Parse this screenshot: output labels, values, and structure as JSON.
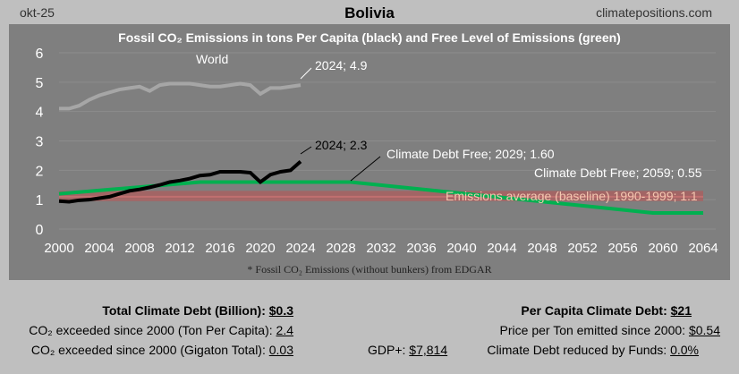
{
  "header": {
    "date": "okt-25",
    "country": "Bolivia",
    "site": "climatepositions.com"
  },
  "chart_data": {
    "type": "line",
    "title": "Fossil CO₂ Emissions in tons Per Capita (black) and Free Level of Emissions (green)",
    "footnote": "* Fossil CO₂ Emissions (without bunkers) from EDGAR",
    "xlim": [
      2000,
      2064
    ],
    "ylim": [
      0,
      6
    ],
    "x_ticks": [
      "2000",
      "2004",
      "2008",
      "2012",
      "2016",
      "2020",
      "2024",
      "2028",
      "2032",
      "2036",
      "2040",
      "2044",
      "2048",
      "2052",
      "2056",
      "2060",
      "2064"
    ],
    "y_ticks": [
      "0",
      "1",
      "2",
      "3",
      "4",
      "5",
      "6"
    ],
    "series": [
      {
        "name": "World",
        "color": "#999999",
        "x": [
          2000,
          2001,
          2002,
          2003,
          2004,
          2005,
          2006,
          2007,
          2008,
          2009,
          2010,
          2011,
          2012,
          2013,
          2014,
          2015,
          2016,
          2017,
          2018,
          2019,
          2020,
          2021,
          2022,
          2023,
          2024
        ],
        "y": [
          4.1,
          4.1,
          4.2,
          4.4,
          4.55,
          4.65,
          4.75,
          4.8,
          4.85,
          4.7,
          4.9,
          4.95,
          4.95,
          4.95,
          4.9,
          4.85,
          4.85,
          4.9,
          4.95,
          4.9,
          4.6,
          4.8,
          4.8,
          4.85,
          4.9
        ]
      },
      {
        "name": "Bolivia",
        "color": "#000000",
        "x": [
          2000,
          2001,
          2002,
          2003,
          2004,
          2005,
          2006,
          2007,
          2008,
          2009,
          2010,
          2011,
          2012,
          2013,
          2014,
          2015,
          2016,
          2017,
          2018,
          2019,
          2020,
          2021,
          2022,
          2023,
          2024
        ],
        "y": [
          0.95,
          0.93,
          0.98,
          1.0,
          1.05,
          1.1,
          1.2,
          1.3,
          1.35,
          1.42,
          1.5,
          1.6,
          1.65,
          1.72,
          1.82,
          1.85,
          1.95,
          1.95,
          1.95,
          1.92,
          1.6,
          1.85,
          1.95,
          2.0,
          2.3
        ]
      },
      {
        "name": "Climate Debt Free",
        "color": "#00b050",
        "x": [
          2000,
          2014,
          2029,
          2059,
          2064
        ],
        "y": [
          1.2,
          1.6,
          1.6,
          0.55,
          0.55
        ]
      }
    ],
    "baseline": {
      "value": 1.1,
      "band": [
        0.95,
        1.3
      ]
    },
    "annotations": {
      "world": "World",
      "world_2024": "2024; 4.9",
      "country_2024": "2024; 2.3",
      "free_2029": "Climate Debt Free; 2029; 1.60",
      "free_2059": "Climate Debt Free; 2059; 0.55",
      "baseline": "Emissions average (baseline) 1990-1999; 1.1"
    }
  },
  "stats": {
    "total_debt_label": "Total Climate Debt (Billion):",
    "total_debt": "$0.3",
    "per_capita_label": "Per Capita Climate Debt:",
    "per_capita": "$21",
    "exceeded_ton_label": "CO₂ exceeded since 2000 (Ton Per Capita):",
    "exceeded_ton": "2.4",
    "price_label": "Price per Ton emitted since 2000:",
    "price": "$0.54",
    "exceeded_gt_label": "CO₂ exceeded since 2000 (Gigaton Total):",
    "exceeded_gt": "0.03",
    "gdp_label": "GDP+:",
    "gdp": "$7,814",
    "funds_label": "Climate Debt reduced by Funds:",
    "funds": "0.0%"
  }
}
